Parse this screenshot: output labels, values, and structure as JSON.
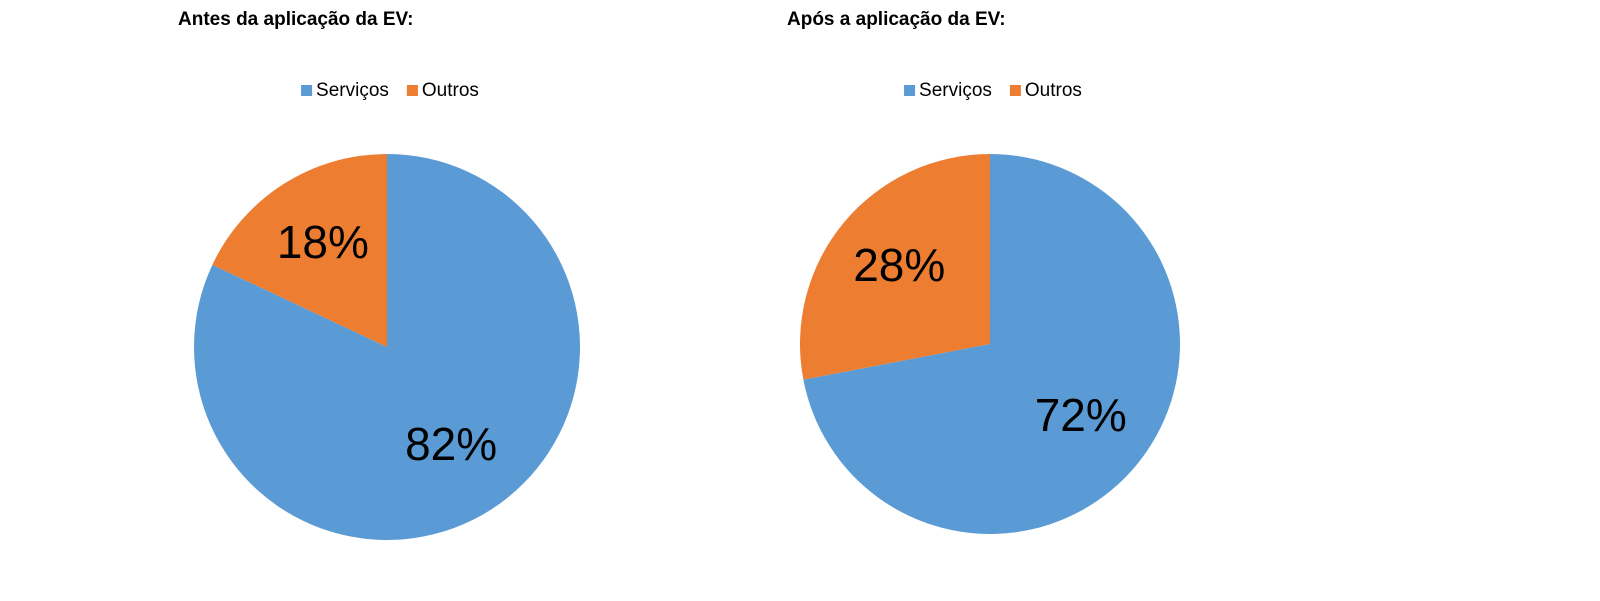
{
  "chart_data": [
    {
      "type": "pie",
      "title": "Antes da aplicação da EV:",
      "categories": [
        "Serviços",
        "Outros"
      ],
      "values": [
        82,
        18
      ],
      "value_labels": [
        "82%",
        "18%"
      ],
      "colors": [
        "#5b9bd5",
        "#ed7d31"
      ],
      "legend": "top"
    },
    {
      "type": "pie",
      "title": "Após a aplicação da EV:",
      "categories": [
        "Serviços",
        "Outros"
      ],
      "values": [
        72,
        28
      ],
      "value_labels": [
        "72%",
        "28%"
      ],
      "colors": [
        "#5b9bd5",
        "#ed7d31"
      ],
      "legend": "top"
    }
  ]
}
